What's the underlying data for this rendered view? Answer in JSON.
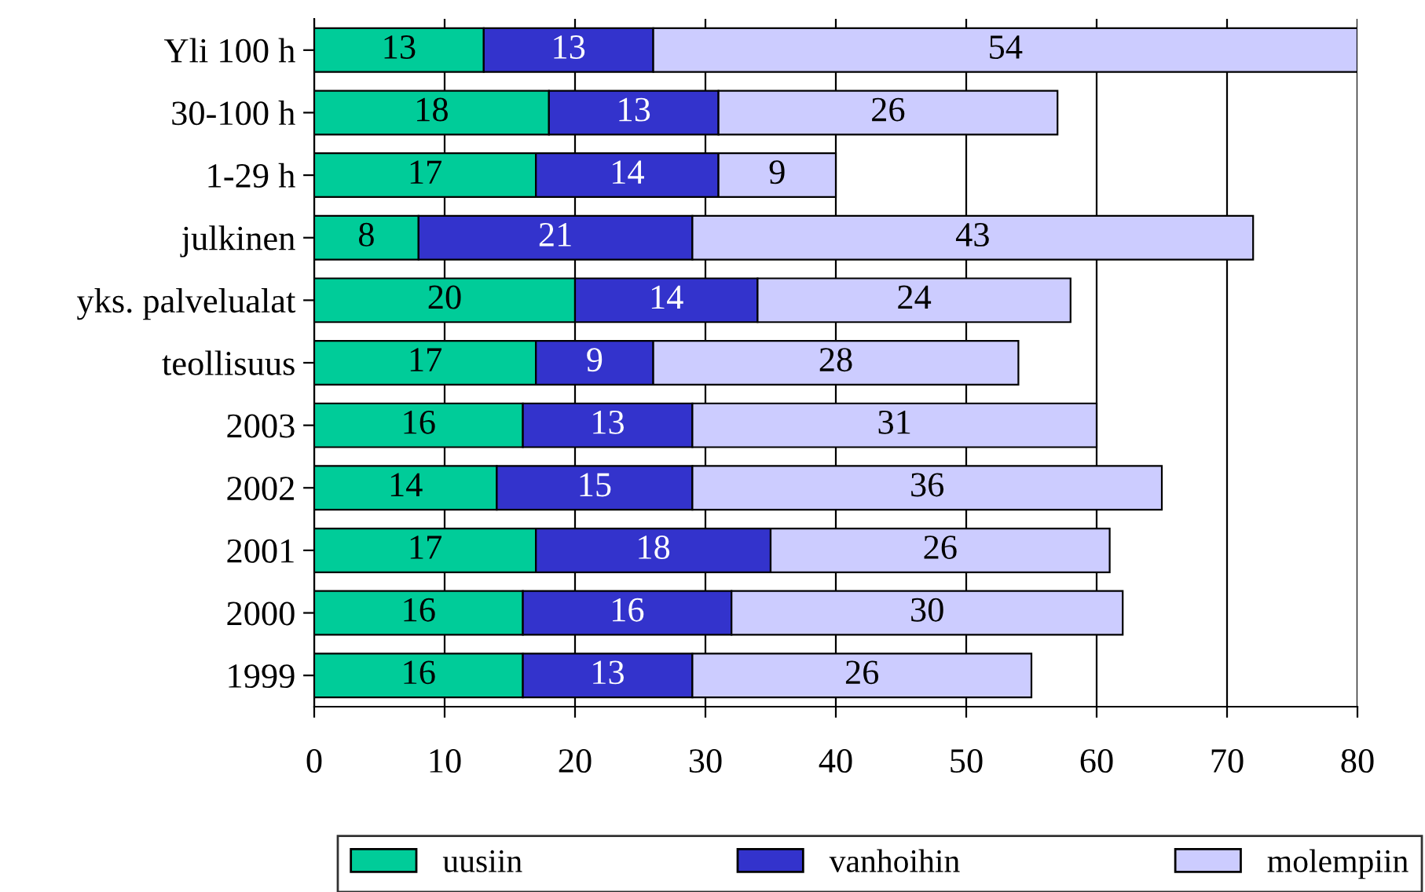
{
  "chart_data": {
    "type": "bar",
    "orientation": "horizontal",
    "stacked": true,
    "data_labels": true,
    "grid": "x",
    "legend": "bottom",
    "categories": [
      "Yli 100 h",
      "30-100 h",
      "1-29 h",
      "julkinen",
      "yks. palvelualat",
      "teollisuus",
      "2003",
      "2002",
      "2001",
      "2000",
      "1999"
    ],
    "series": [
      {
        "name": "uusiin",
        "color": "#00cc99",
        "values": [
          13,
          18,
          17,
          8,
          20,
          17,
          16,
          14,
          17,
          16,
          16
        ]
      },
      {
        "name": "vanhoihin",
        "color": "#3333cc",
        "values": [
          13,
          13,
          14,
          21,
          14,
          9,
          13,
          15,
          18,
          16,
          13
        ]
      },
      {
        "name": "molempiin",
        "color": "#ccccff",
        "values": [
          54,
          26,
          9,
          43,
          24,
          28,
          31,
          36,
          26,
          30,
          26
        ]
      }
    ],
    "xlim": [
      0,
      80
    ],
    "xticks": [
      0,
      10,
      20,
      30,
      40,
      50,
      60,
      70,
      80
    ]
  }
}
